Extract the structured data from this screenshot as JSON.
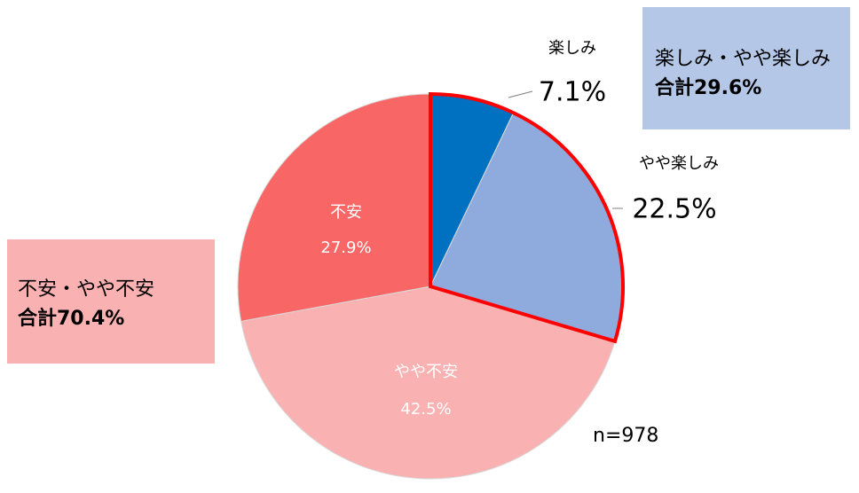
{
  "chart_data": {
    "type": "pie",
    "categories": [
      "楽しみ",
      "やや楽しみ",
      "やや不安",
      "不安"
    ],
    "values": [
      7.1,
      22.5,
      42.5,
      27.9
    ],
    "value_labels": [
      "7.1%",
      "22.5%",
      "42.5%",
      "27.9%"
    ],
    "colors": [
      "#0070c0",
      "#8faadc",
      "#f9b1b1",
      "#f86666"
    ],
    "annotations": [
      {
        "lines": [
          "楽しみ・やや楽しみ",
          "合計29.6%"
        ],
        "color": "#b4c7e7"
      },
      {
        "lines": [
          "不安・やや不安",
          "合計70.4%"
        ],
        "color": "#f9b1b1"
      }
    ],
    "note": "n=978"
  }
}
